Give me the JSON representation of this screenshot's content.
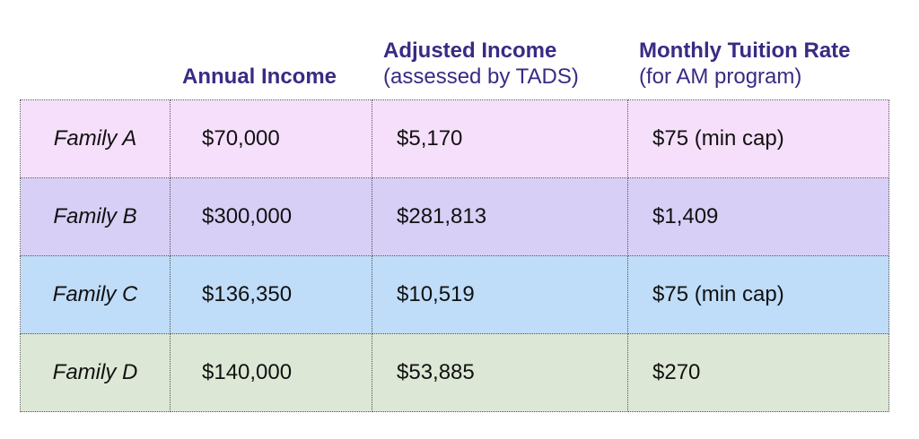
{
  "headers": {
    "annual": {
      "title": "Annual Income"
    },
    "adjusted": {
      "title": "Adjusted Income",
      "subtitle": "(assessed by TADS)"
    },
    "monthly": {
      "title": "Monthly Tuition Rate",
      "subtitle": "(for AM program)"
    }
  },
  "colors": {
    "header_text": "#3b2a84",
    "row_a": "#f6dffb",
    "row_b": "#d8cff6",
    "row_c": "#bfdcf8",
    "row_d": "#dde7d5"
  },
  "rows": [
    {
      "family": "Family A",
      "annual": "$70,000",
      "adjusted": "$5,170",
      "monthly": "$75 (min cap)"
    },
    {
      "family": "Family B",
      "annual": "$300,000",
      "adjusted": "$281,813",
      "monthly": "$1,409"
    },
    {
      "family": "Family C",
      "annual": "$136,350",
      "adjusted": "$10,519",
      "monthly": "$75 (min cap)"
    },
    {
      "family": "Family D",
      "annual": "$140,000",
      "adjusted": "$53,885",
      "monthly": "$270"
    }
  ]
}
